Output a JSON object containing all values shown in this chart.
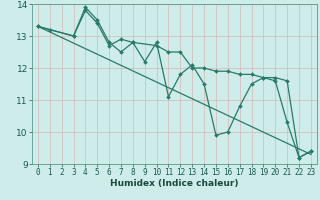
{
  "title": "",
  "xlabel": "Humidex (Indice chaleur)",
  "bg_color": "#ceecea",
  "line_color": "#2a7a6a",
  "grid_color": "#b8d8d4",
  "xlim": [
    -0.5,
    23.5
  ],
  "ylim": [
    9,
    14
  ],
  "xticks": [
    0,
    1,
    2,
    3,
    4,
    5,
    6,
    7,
    8,
    9,
    10,
    11,
    12,
    13,
    14,
    15,
    16,
    17,
    18,
    19,
    20,
    21,
    22,
    23
  ],
  "yticks": [
    9,
    10,
    11,
    12,
    13,
    14
  ],
  "series1_x": [
    0,
    1,
    3,
    4,
    5,
    6,
    7,
    8,
    9,
    10,
    11,
    12,
    13,
    14,
    15,
    16,
    17,
    18,
    19,
    20,
    21,
    22,
    23
  ],
  "series1_y": [
    13.3,
    13.2,
    13.0,
    13.9,
    13.5,
    12.8,
    12.5,
    12.8,
    12.2,
    12.8,
    11.1,
    11.8,
    12.1,
    11.5,
    9.9,
    10.0,
    10.8,
    11.5,
    11.7,
    11.6,
    10.3,
    9.2,
    9.4
  ],
  "series2_x": [
    0,
    3,
    4,
    5,
    6,
    7,
    8,
    10,
    11,
    12,
    13,
    14,
    15,
    16,
    17,
    18,
    19,
    20,
    21,
    22,
    23
  ],
  "series2_y": [
    13.3,
    13.0,
    13.8,
    13.4,
    12.7,
    12.9,
    12.8,
    12.7,
    12.5,
    12.5,
    12.0,
    12.0,
    11.9,
    11.9,
    11.8,
    11.8,
    11.7,
    11.7,
    11.6,
    9.2,
    9.4
  ],
  "trend_x": [
    0,
    23
  ],
  "trend_y": [
    13.3,
    9.3
  ]
}
